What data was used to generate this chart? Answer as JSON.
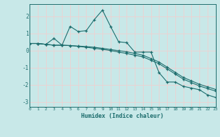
{
  "xlabel": "Humidex (Indice chaleur)",
  "bg_color": "#c8e8e8",
  "grid_color": "#f0d0d0",
  "line_color": "#1a6b6b",
  "xlim": [
    0,
    23
  ],
  "ylim": [
    -3.3,
    2.7
  ],
  "x_ticks": [
    0,
    1,
    2,
    3,
    4,
    5,
    6,
    7,
    8,
    9,
    10,
    11,
    12,
    13,
    14,
    15,
    16,
    17,
    18,
    19,
    20,
    21,
    22,
    23
  ],
  "y_ticks": [
    -3,
    -2,
    -1,
    0,
    1,
    2
  ],
  "series1_x": [
    0,
    1,
    2,
    3,
    4,
    5,
    6,
    7,
    8,
    9,
    10,
    11,
    12,
    13,
    14,
    15,
    16,
    17,
    18,
    19,
    20,
    21,
    22,
    23
  ],
  "series1_y": [
    0.4,
    0.4,
    0.35,
    0.7,
    0.3,
    1.4,
    1.1,
    1.15,
    1.8,
    2.35,
    1.4,
    0.5,
    0.45,
    -0.1,
    -0.1,
    -0.1,
    -1.3,
    -1.85,
    -1.85,
    -2.1,
    -2.2,
    -2.3,
    -2.6,
    -2.75
  ],
  "series2_x": [
    0,
    1,
    2,
    3,
    4,
    5,
    6,
    7,
    8,
    9,
    10,
    11,
    12,
    13,
    14,
    15,
    16,
    17,
    18,
    19,
    20,
    21,
    22,
    23
  ],
  "series2_y": [
    0.4,
    0.4,
    0.35,
    0.3,
    0.3,
    0.28,
    0.25,
    0.22,
    0.18,
    0.12,
    0.05,
    -0.02,
    -0.08,
    -0.18,
    -0.28,
    -0.48,
    -0.68,
    -0.98,
    -1.28,
    -1.58,
    -1.78,
    -1.98,
    -2.13,
    -2.28
  ],
  "series3_x": [
    0,
    1,
    2,
    3,
    4,
    5,
    6,
    7,
    8,
    9,
    10,
    11,
    12,
    13,
    14,
    15,
    16,
    17,
    18,
    19,
    20,
    21,
    22,
    23
  ],
  "series3_y": [
    0.4,
    0.4,
    0.35,
    0.3,
    0.3,
    0.28,
    0.23,
    0.18,
    0.12,
    0.06,
    -0.01,
    -0.1,
    -0.18,
    -0.28,
    -0.38,
    -0.58,
    -0.78,
    -1.08,
    -1.38,
    -1.68,
    -1.88,
    -2.08,
    -2.23,
    -2.38
  ]
}
